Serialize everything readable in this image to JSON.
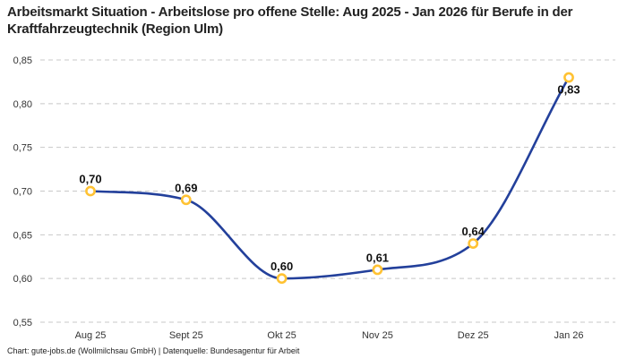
{
  "title": "Arbeitsmarkt Situation - Arbeitslose pro offene Stelle: Aug 2025 - Jan 2026 für Berufe in der Kraftfahrzeugtechnik (Region Ulm)",
  "footer": {
    "credit": "Chart: gute-jobs.de (Wollmilchsau GmbH) | Datenquelle: Bundesagentur für Arbeit"
  },
  "chart_data": {
    "type": "line",
    "title": "Arbeitsmarkt Situation - Arbeitslose pro offene Stelle: Aug 2025 - Jan 2026 für Berufe in der Kraftfahrzeugtechnik (Region Ulm)",
    "categories": [
      "Aug 25",
      "Sept 25",
      "Okt 25",
      "Nov 25",
      "Dez 25",
      "Jan 26"
    ],
    "values": [
      0.7,
      0.69,
      0.6,
      0.61,
      0.64,
      0.83
    ],
    "point_labels": [
      "0,70",
      "0,69",
      "0,60",
      "0,61",
      "0,64",
      "0,83"
    ],
    "point_label_placement": [
      "above",
      "above",
      "above",
      "above",
      "above",
      "below"
    ],
    "y_ticks": [
      0.85,
      0.8,
      0.75,
      0.7,
      0.65,
      0.6,
      0.55
    ],
    "y_tick_labels": [
      "0,85",
      "0,80",
      "0,75",
      "0,70",
      "0,65",
      "0,60",
      "0,55"
    ],
    "ylim": [
      0.55,
      0.85
    ],
    "xlabel": "",
    "ylabel": "",
    "grid": "horizontal-dashed",
    "legend": "none",
    "smooth": true,
    "colors": {
      "line": "#23409B",
      "marker_stroke": "#FFC233",
      "marker_fill": "#FFFFFF",
      "grid": "#C8C8C8",
      "tick_text": "#333333",
      "point_label_text": "#111111"
    }
  }
}
